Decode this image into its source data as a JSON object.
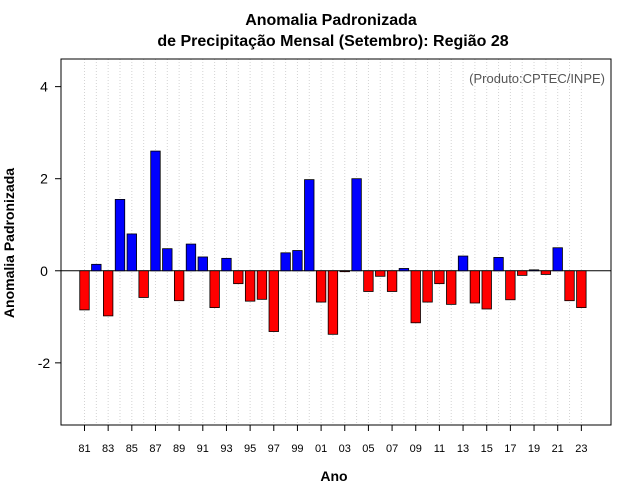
{
  "chart_data": {
    "type": "bar",
    "title": "Anomalia Padronizada",
    "subtitle": "de Precipitação Mensal (Setembro): Região 28",
    "xlabel": "Ano",
    "ylabel": "Anomalia Padronizada",
    "credit": "(Produto:CPTEC/INPE)",
    "ylim": [
      -3.35,
      4.6
    ],
    "y_ticks": [
      "-2",
      "0",
      "2",
      "4"
    ],
    "x_tick_labels": [
      "81",
      "83",
      "85",
      "87",
      "89",
      "91",
      "93",
      "95",
      "97",
      "99",
      "01",
      "03",
      "05",
      "07",
      "09",
      "11",
      "13",
      "15",
      "17",
      "19",
      "21",
      "23"
    ],
    "grid": "vertical dotted",
    "categories": [
      "1981",
      "1982",
      "1983",
      "1984",
      "1985",
      "1986",
      "1987",
      "1988",
      "1989",
      "1990",
      "1991",
      "1992",
      "1993",
      "1994",
      "1995",
      "1996",
      "1997",
      "1998",
      "1999",
      "2000",
      "2001",
      "2002",
      "2003",
      "2004",
      "2005",
      "2006",
      "2007",
      "2008",
      "2009",
      "2010",
      "2011",
      "2012",
      "2013",
      "2014",
      "2015",
      "2016",
      "2017",
      "2018",
      "2019",
      "2020",
      "2021",
      "2022",
      "2023"
    ],
    "values": [
      -0.85,
      0.14,
      -0.98,
      1.55,
      0.8,
      -0.58,
      2.6,
      0.48,
      -0.65,
      0.58,
      0.3,
      -0.8,
      0.27,
      -0.28,
      -0.66,
      -0.62,
      -1.32,
      0.39,
      0.44,
      1.98,
      -0.68,
      -1.38,
      -0.02,
      2.0,
      -0.45,
      -0.12,
      -0.45,
      0.05,
      -1.13,
      -0.68,
      -0.28,
      -0.73,
      0.32,
      -0.7,
      -0.83,
      0.29,
      -0.63,
      -0.1,
      0.02,
      -0.08,
      0.5,
      -0.65,
      -0.8
    ],
    "colors": {
      "positive": "#0000ff",
      "negative": "#ff0000",
      "border": "#000000",
      "grid": "#d3d3d3"
    }
  }
}
